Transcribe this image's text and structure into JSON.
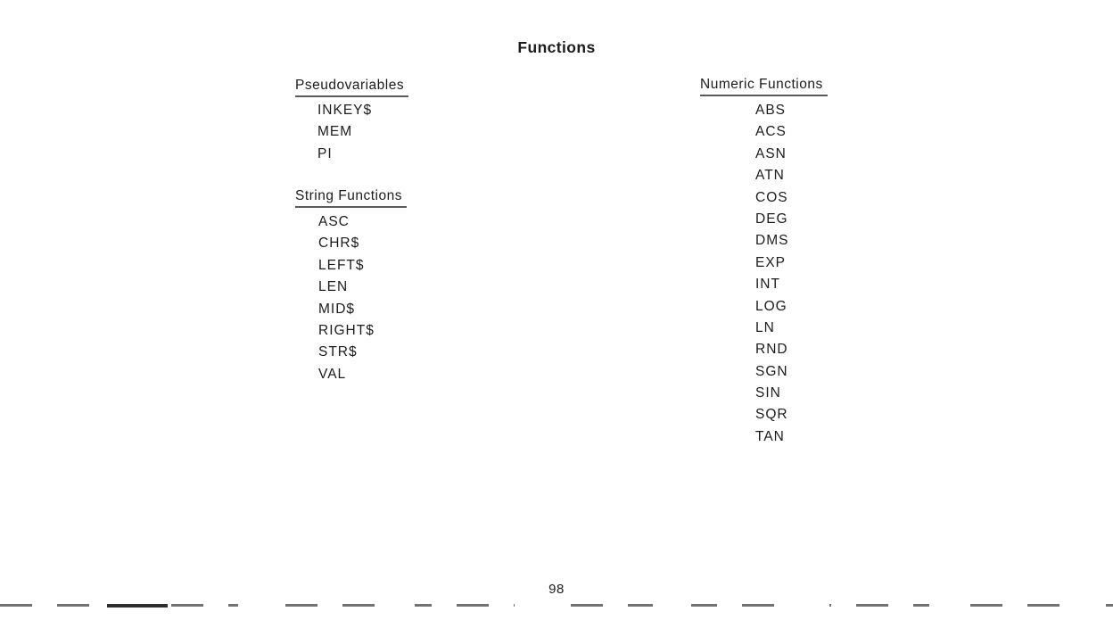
{
  "page": {
    "title": "Functions",
    "page_number": "98"
  },
  "sections": [
    {
      "heading": "Pseudovariables",
      "items": [
        "INKEY$",
        "MEM",
        "PI"
      ]
    },
    {
      "heading": "String Functions",
      "items": [
        "ASC",
        "CHR$",
        "LEFT$",
        "LEN",
        "MID$",
        "RIGHT$",
        "STR$",
        "VAL"
      ]
    },
    {
      "heading": "Numeric Functions",
      "items": [
        "ABS",
        "ACS",
        "ASN",
        "ATN",
        "COS",
        "DEG",
        "DMS",
        "EXP",
        "INT",
        "LOG",
        "LN",
        "RND",
        "SGN",
        "SIN",
        "SQR",
        "TAN"
      ]
    }
  ]
}
